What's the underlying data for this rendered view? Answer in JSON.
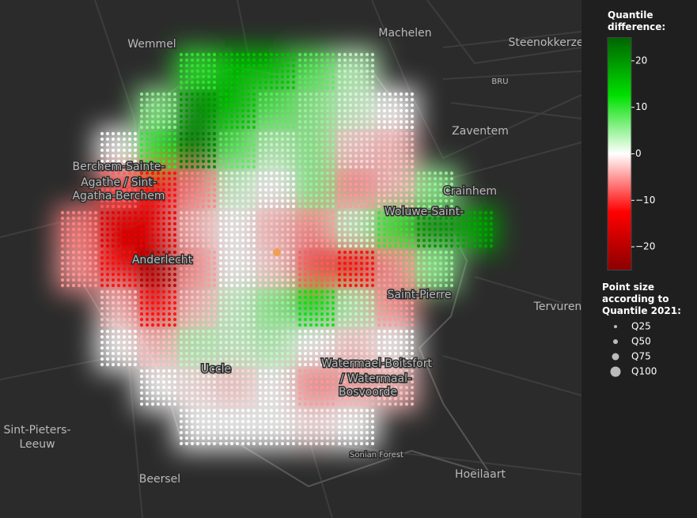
{
  "map": {
    "labels": [
      "Wemmel",
      "Machelen",
      "Steenokkerze",
      "BRU",
      "Zaventem",
      "Berchem-Sainte-",
      "Agathe / Sint-",
      "Agatha-Berchem",
      "Crainhem",
      "Anderlecht",
      "Woluwe-Saint-",
      "Saint-Pierre",
      "Tervuren",
      "Uccle",
      "Watermael-Boitsfort",
      "/ Watermaal-",
      "Bosvoorde",
      "Sint-Pieters-",
      "Leeuw",
      "Beersel",
      "Sonian Forest",
      "Hoeilaart"
    ],
    "heat": {
      "x": [
        100,
        150,
        200,
        250,
        300,
        350,
        400,
        450,
        500,
        550,
        600
      ],
      "rows": [
        [
          null,
          null,
          null,
          10,
          15,
          15,
          8,
          3,
          null,
          null,
          null
        ],
        [
          null,
          null,
          5,
          20,
          15,
          8,
          5,
          2,
          0,
          null,
          null
        ],
        [
          null,
          0,
          10,
          22,
          8,
          3,
          5,
          -2,
          -3,
          null,
          null
        ],
        [
          null,
          -8,
          -12,
          -6,
          2,
          0,
          5,
          -5,
          -3,
          5,
          null
        ],
        [
          -6,
          -15,
          -14,
          -3,
          0,
          -3,
          -5,
          2,
          10,
          20,
          18
        ],
        [
          -5,
          -12,
          -20,
          -5,
          0,
          -2,
          -8,
          -12,
          -5,
          5,
          null
        ],
        [
          null,
          -3,
          -12,
          -3,
          2,
          5,
          12,
          3,
          -5,
          null,
          null
        ],
        [
          null,
          0,
          -3,
          3,
          2,
          3,
          0,
          -2,
          0,
          null,
          null
        ],
        [
          null,
          null,
          0,
          -1,
          -2,
          0,
          -5,
          -4,
          -3,
          null,
          null
        ],
        [
          null,
          null,
          null,
          0,
          0,
          0,
          -1,
          0,
          null,
          null,
          null
        ]
      ]
    }
  },
  "legend": {
    "title": "Quantile difference:",
    "lim": [
      -25,
      25
    ],
    "colorscale": [
      "#8b0000",
      "#ff0000",
      "#ffffff",
      "#00e000",
      "#006400"
    ],
    "ticks": [
      20,
      10,
      0,
      {
        "value": -10,
        "label": "−10"
      },
      {
        "value": -20,
        "label": "−20"
      }
    ],
    "size_title": "Point size according to Quantile 2021:",
    "sizes": [
      "Q25",
      "Q50",
      "Q75",
      "Q100"
    ]
  }
}
